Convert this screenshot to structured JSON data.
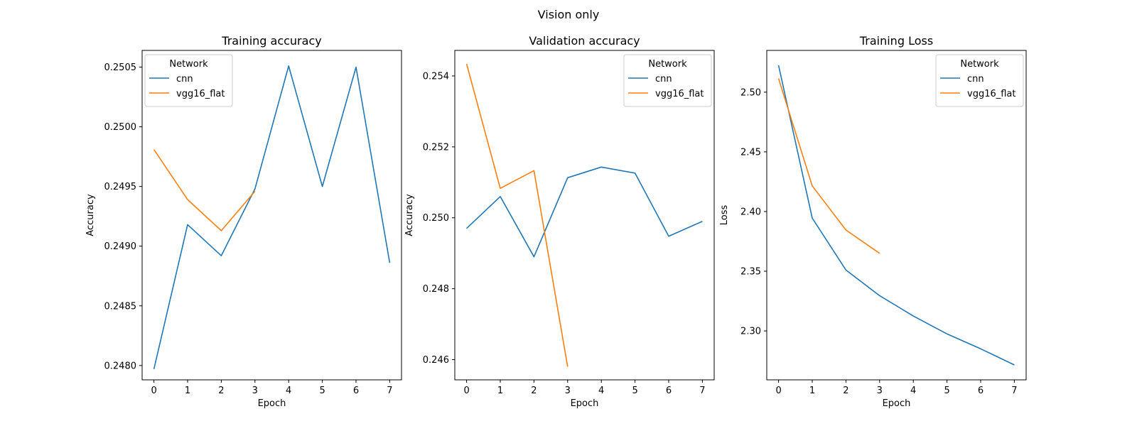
{
  "figure": {
    "suptitle": "Vision only"
  },
  "colors": {
    "cnn": "#1f77b4",
    "vgg16_flat": "#ff7f0e"
  },
  "chart_data": [
    {
      "type": "line",
      "title": "Training accuracy",
      "xlabel": "Epoch",
      "ylabel": "Accuracy",
      "xlim": [
        -0.35,
        7.35
      ],
      "ylim": [
        0.24788,
        0.25064
      ],
      "xticks": [
        0,
        1,
        2,
        3,
        4,
        5,
        6,
        7
      ],
      "yticks": [
        0.248,
        0.2485,
        0.249,
        0.2495,
        0.25,
        0.2505
      ],
      "yticklabels": [
        "0.2480",
        "0.2485",
        "0.2490",
        "0.2495",
        "0.2500",
        "0.2505"
      ],
      "legend": {
        "title": "Network",
        "loc": "upper left"
      },
      "series": [
        {
          "name": "cnn",
          "x": [
            0,
            1,
            2,
            3,
            4,
            5,
            6,
            7
          ],
          "y": [
            0.24797,
            0.24918,
            0.24892,
            0.24948,
            0.25051,
            0.2495,
            0.2505,
            0.24886
          ]
        },
        {
          "name": "vgg16_flat",
          "x": [
            0,
            1,
            2,
            3
          ],
          "y": [
            0.24981,
            0.24939,
            0.24913,
            0.24946
          ]
        }
      ]
    },
    {
      "type": "line",
      "title": "Validation accuracy",
      "xlabel": "Epoch",
      "ylabel": "Accuracy",
      "xlim": [
        -0.35,
        7.35
      ],
      "ylim": [
        0.24543,
        0.25472
      ],
      "xticks": [
        0,
        1,
        2,
        3,
        4,
        5,
        6,
        7
      ],
      "yticks": [
        0.246,
        0.248,
        0.25,
        0.252,
        0.254
      ],
      "yticklabels": [
        "0.246",
        "0.248",
        "0.250",
        "0.252",
        "0.254"
      ],
      "legend": {
        "title": "Network",
        "loc": "upper right"
      },
      "series": [
        {
          "name": "cnn",
          "x": [
            0,
            1,
            2,
            3,
            4,
            5,
            6,
            7
          ],
          "y": [
            0.2497,
            0.2506,
            0.2489,
            0.25113,
            0.25143,
            0.25126,
            0.24948,
            0.2499
          ]
        },
        {
          "name": "vgg16_flat",
          "x": [
            0,
            1,
            2,
            3
          ],
          "y": [
            0.25434,
            0.25083,
            0.25133,
            0.2458
          ]
        }
      ]
    },
    {
      "type": "line",
      "title": "Training Loss",
      "xlabel": "Epoch",
      "ylabel": "Loss",
      "xlim": [
        -0.35,
        7.35
      ],
      "ylim": [
        2.259,
        2.535
      ],
      "xticks": [
        0,
        1,
        2,
        3,
        4,
        5,
        6,
        7
      ],
      "yticks": [
        2.3,
        2.35,
        2.4,
        2.45,
        2.5
      ],
      "yticklabels": [
        "2.30",
        "2.35",
        "2.40",
        "2.45",
        "2.50"
      ],
      "legend": {
        "title": "Network",
        "loc": "upper right"
      },
      "series": [
        {
          "name": "cnn",
          "x": [
            0,
            1,
            2,
            3,
            4,
            5,
            6,
            7
          ],
          "y": [
            2.5225,
            2.3945,
            2.351,
            2.3295,
            2.3125,
            2.2975,
            2.285,
            2.2715
          ]
        },
        {
          "name": "vgg16_flat",
          "x": [
            0,
            1,
            2,
            3
          ],
          "y": [
            2.5115,
            2.4215,
            2.3845,
            2.365
          ]
        }
      ]
    }
  ]
}
